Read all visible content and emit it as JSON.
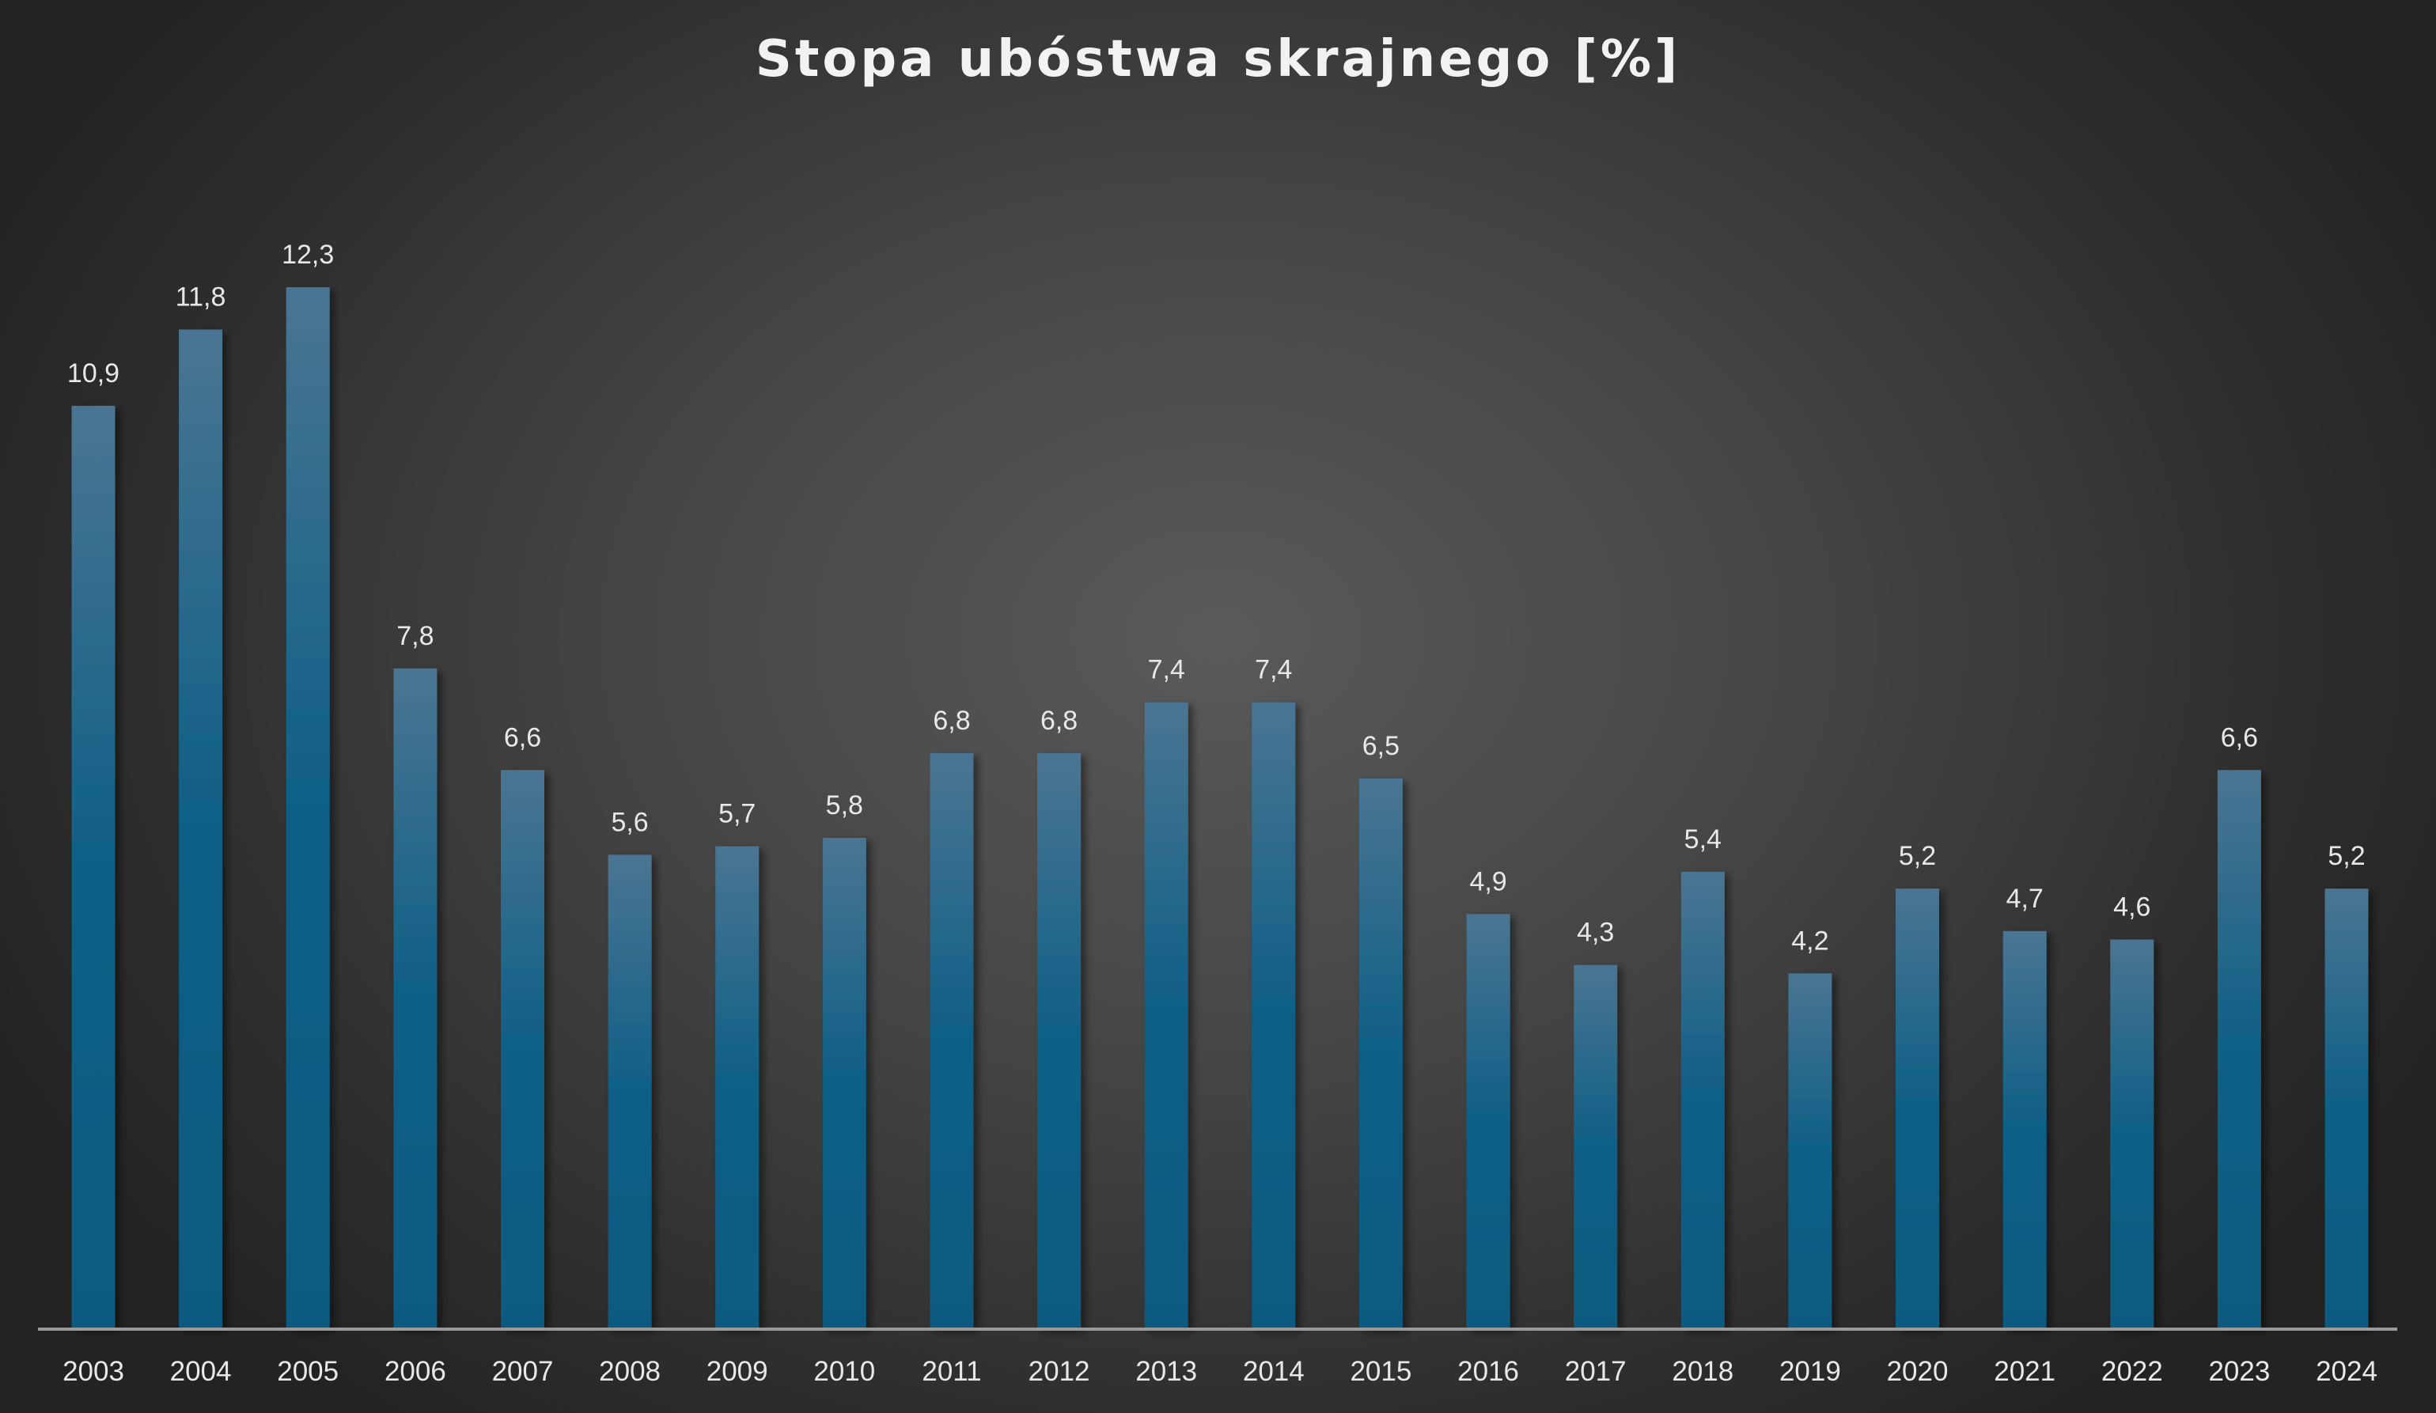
{
  "chart_data": {
    "type": "bar",
    "title": "Stopa ubóstwa skrajnego [%]",
    "xlabel": "",
    "ylabel": "",
    "categories": [
      "2003",
      "2004",
      "2005",
      "2006",
      "2007",
      "2008",
      "2009",
      "2010",
      "2011",
      "2012",
      "2013",
      "2014",
      "2015",
      "2016",
      "2017",
      "2018",
      "2019",
      "2020",
      "2021",
      "2022",
      "2023",
      "2024"
    ],
    "values": [
      10.9,
      11.8,
      12.3,
      7.8,
      6.6,
      5.6,
      5.7,
      5.8,
      6.8,
      6.8,
      7.4,
      7.4,
      6.5,
      4.9,
      4.3,
      5.4,
      4.2,
      5.2,
      4.7,
      4.6,
      6.6,
      5.2
    ],
    "data_labels": [
      "10,9",
      "11,8",
      "12,3",
      "7,8",
      "6,6",
      "5,6",
      "5,7",
      "5,8",
      "6,8",
      "6,8",
      "7,4",
      "7,4",
      "6,5",
      "4,9",
      "4,3",
      "5,4",
      "4,2",
      "5,2",
      "4,7",
      "4,6",
      "6,6",
      "5,2"
    ],
    "ylim": [
      0,
      12.3
    ],
    "grid": false,
    "legend": "none",
    "colors": {
      "bar_top": "#4a7592",
      "bar_bottom": "#0b5a80",
      "axis": "#9a9a9a",
      "text": "#e8e8e8"
    }
  }
}
